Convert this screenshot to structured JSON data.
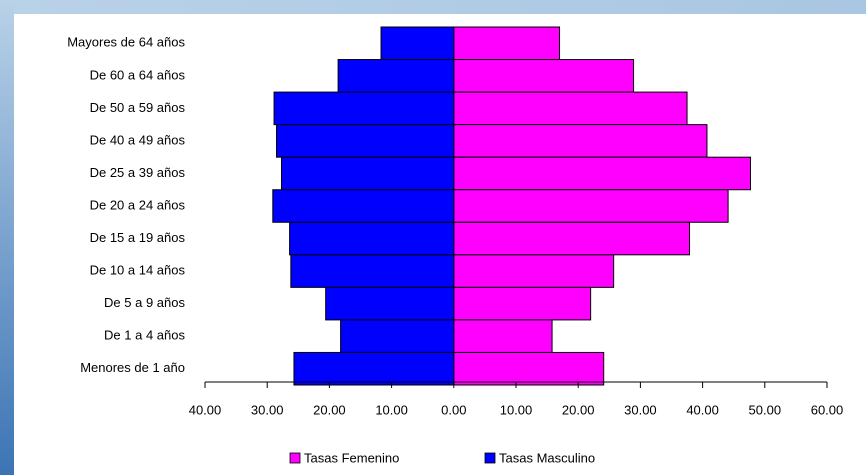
{
  "chart_data": {
    "type": "bar",
    "orientation": "horizontal",
    "stacked": "diverging",
    "categories": [
      "Mayores de 64 años",
      "De 60 a 64 años",
      "De 50 a 59 años",
      "De 40 a 49 años",
      "De 25 a 39 años",
      "De 20 a 24 años",
      "De 15 a 19 años",
      "De 10 a 14 años",
      "De 5 a 9 años",
      "De 1 a 4 años",
      "Menores de 1 año"
    ],
    "series": [
      {
        "name": "Tasas Femenino",
        "color": "#ff00ff",
        "values": [
          17.0,
          28.9,
          37.5,
          40.7,
          47.7,
          44.1,
          37.9,
          25.7,
          22.0,
          15.8,
          24.1
        ]
      },
      {
        "name": "Tasas Masculino",
        "color": "#0000ff",
        "values": [
          -11.7,
          -18.6,
          -28.9,
          -28.5,
          -27.7,
          -29.1,
          -26.4,
          -26.2,
          -20.6,
          -18.2,
          -25.7
        ]
      }
    ],
    "xlim": [
      -40,
      60
    ],
    "xticks": [
      {
        "value": -40,
        "label": "40.00"
      },
      {
        "value": -30,
        "label": "30.00"
      },
      {
        "value": -20,
        "label": "20.00"
      },
      {
        "value": -10,
        "label": "10.00"
      },
      {
        "value": 0,
        "label": "0.00"
      },
      {
        "value": 10,
        "label": "10.00"
      },
      {
        "value": 20,
        "label": "20.00"
      },
      {
        "value": 30,
        "label": "30.00"
      },
      {
        "value": 40,
        "label": "40.00"
      },
      {
        "value": 50,
        "label": "50.00"
      },
      {
        "value": 60,
        "label": "60.00"
      }
    ],
    "grid": false,
    "legend": "bottom"
  }
}
